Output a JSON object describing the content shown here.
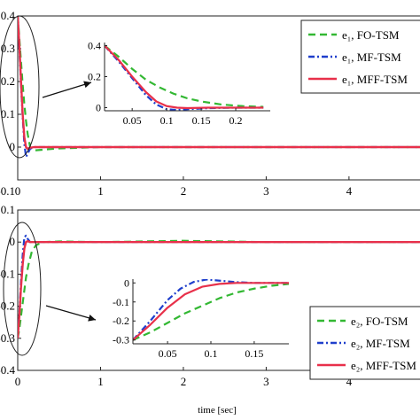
{
  "chart_data": [
    {
      "id": "top",
      "type": "line",
      "xlabel": "",
      "ylabel": "",
      "xlim": [
        0,
        4.9
      ],
      "ylim": [
        -0.1,
        0.4
      ],
      "x_ticks": [
        0,
        1,
        2,
        3,
        4
      ],
      "x_tick_labels": [
        "0",
        "1",
        "2",
        "3",
        "4"
      ],
      "y_ticks": [
        0.4,
        0.3,
        0.2,
        0.1,
        0
      ],
      "y_tick_labels": [
        "0.4",
        "0.3",
        "0.2",
        "0.1",
        "0"
      ],
      "y_tick_labels_bottom": "-0.1",
      "legend_position": "top-right",
      "series": [
        {
          "name": "e₁, FO-TSM",
          "color": "#33b833",
          "dash": "dash",
          "x": [
            0,
            0.02,
            0.04,
            0.06,
            0.08,
            0.1,
            0.12,
            0.15,
            0.2,
            0.3,
            0.5,
            1,
            2,
            3,
            4,
            4.9
          ],
          "y": [
            0.4,
            0.33,
            0.26,
            0.19,
            0.13,
            0.08,
            0.04,
            0.0,
            -0.01,
            -0.008,
            -0.004,
            0.0,
            0.0,
            0.0,
            0.0,
            0.0
          ]
        },
        {
          "name": "e₁, MF-TSM",
          "color": "#1f3fcc",
          "dash": "dashdot",
          "x": [
            0,
            0.02,
            0.04,
            0.06,
            0.08,
            0.1,
            0.12,
            0.15,
            0.2,
            0.3,
            1,
            2,
            3,
            4,
            4.9
          ],
          "y": [
            0.4,
            0.3,
            0.19,
            0.09,
            0.01,
            -0.03,
            -0.02,
            -0.005,
            0.0,
            0.0,
            0.0,
            0.0,
            0.0,
            0.0,
            0.0
          ]
        },
        {
          "name": "e₁, MFF-TSM",
          "color": "#e8304a",
          "dash": "solid",
          "x": [
            0,
            0.02,
            0.04,
            0.06,
            0.08,
            0.1,
            0.12,
            0.15,
            0.2,
            0.3,
            1,
            2,
            3,
            4,
            4.9
          ],
          "y": [
            0.4,
            0.31,
            0.2,
            0.1,
            0.03,
            0.0,
            -0.005,
            -0.002,
            0.0,
            0.0,
            0.0,
            0.0,
            0.0,
            0.0,
            0.0
          ]
        }
      ],
      "inset": {
        "xlim": [
          0.01,
          0.25
        ],
        "ylim": [
          -0.02,
          0.42
        ],
        "x_ticks": [
          0.05,
          0.1,
          0.15,
          0.2
        ],
        "x_tick_labels": [
          "0.05",
          "0.1",
          "0.15",
          "0.2"
        ],
        "y_ticks": [
          0.4,
          0.2,
          0
        ],
        "y_tick_labels": [
          "0.4",
          "0.2",
          "0"
        ],
        "series": [
          {
            "name": "e₁, FO-TSM",
            "x": [
              0.01,
              0.03,
              0.05,
              0.07,
              0.09,
              0.11,
              0.13,
              0.15,
              0.18,
              0.21,
              0.24
            ],
            "y": [
              0.4,
              0.33,
              0.25,
              0.18,
              0.13,
              0.09,
              0.06,
              0.04,
              0.02,
              0.01,
              0.005
            ]
          },
          {
            "name": "e₁, MF-TSM",
            "x": [
              0.01,
              0.03,
              0.05,
              0.07,
              0.085,
              0.1,
              0.115,
              0.13,
              0.16,
              0.2,
              0.24
            ],
            "y": [
              0.4,
              0.3,
              0.19,
              0.08,
              0.02,
              -0.01,
              -0.015,
              -0.01,
              -0.003,
              0.0,
              0.0
            ]
          },
          {
            "name": "e₁, MFF-TSM",
            "x": [
              0.01,
              0.03,
              0.05,
              0.07,
              0.085,
              0.1,
              0.115,
              0.13,
              0.16,
              0.2,
              0.24
            ],
            "y": [
              0.4,
              0.31,
              0.2,
              0.1,
              0.04,
              0.01,
              0.0,
              -0.003,
              0.0,
              0.0,
              0.0
            ]
          }
        ]
      }
    },
    {
      "id": "bottom",
      "type": "line",
      "xlabel": "time [sec]",
      "ylabel": "",
      "xlim": [
        0,
        4.9
      ],
      "ylim": [
        -0.4,
        0.1
      ],
      "x_ticks": [
        0,
        1,
        2,
        3,
        4
      ],
      "x_tick_labels": [
        "0",
        "1",
        "2",
        "3",
        "4"
      ],
      "y_ticks": [
        0.1,
        0,
        -0.1,
        -0.2,
        -0.3,
        -0.4
      ],
      "y_tick_labels": [
        "0.1",
        "0",
        "-0.1",
        "-0.2",
        "-0.3",
        "-0.4"
      ],
      "legend_position": "bottom-right",
      "series": [
        {
          "name": "e₂, FO-TSM",
          "color": "#33b833",
          "dash": "dash",
          "x": [
            0,
            0.02,
            0.04,
            0.06,
            0.08,
            0.1,
            0.13,
            0.17,
            0.22,
            0.3,
            0.5,
            1,
            2,
            3,
            4,
            4.9
          ],
          "y": [
            -0.3,
            -0.27,
            -0.23,
            -0.19,
            -0.15,
            -0.11,
            -0.07,
            -0.03,
            -0.01,
            0.0,
            0.002,
            0.0,
            0.004,
            0.0,
            0.0,
            0.0
          ]
        },
        {
          "name": "e₂, MF-TSM",
          "color": "#1f3fcc",
          "dash": "dashdot",
          "x": [
            0,
            0.02,
            0.04,
            0.06,
            0.08,
            0.1,
            0.12,
            0.15,
            0.2,
            0.3,
            1,
            2,
            3,
            4,
            4.9
          ],
          "y": [
            -0.3,
            -0.22,
            -0.12,
            -0.04,
            0.015,
            0.02,
            0.01,
            0.0,
            0.0,
            0.0,
            0.0,
            0.0,
            0.0,
            0.0,
            0.0
          ]
        },
        {
          "name": "e₂, MFF-TSM",
          "color": "#e8304a",
          "dash": "solid",
          "x": [
            0,
            0.02,
            0.04,
            0.06,
            0.08,
            0.1,
            0.12,
            0.15,
            0.2,
            0.3,
            1,
            2,
            3,
            4,
            4.9
          ],
          "y": [
            -0.3,
            -0.23,
            -0.14,
            -0.07,
            -0.02,
            0.0,
            0.003,
            0.0,
            0.0,
            0.0,
            0.0,
            0.0,
            0.0,
            0.0,
            0.0
          ]
        }
      ],
      "inset": {
        "xlim": [
          0.01,
          0.19
        ],
        "ylim": [
          -0.32,
          0.02
        ],
        "x_ticks": [
          0.05,
          0.1,
          0.15
        ],
        "x_tick_labels": [
          "0.05",
          "0.1",
          "0.15"
        ],
        "y_ticks": [
          0,
          -0.1,
          -0.2,
          -0.3
        ],
        "y_tick_labels": [
          "0",
          "-0.1",
          "-0.2",
          "-0.3"
        ],
        "series": [
          {
            "name": "e₂, FO-TSM",
            "x": [
              0.01,
              0.03,
              0.05,
              0.07,
              0.09,
              0.11,
              0.13,
              0.15,
              0.17,
              0.19
            ],
            "y": [
              -0.3,
              -0.26,
              -0.21,
              -0.16,
              -0.12,
              -0.08,
              -0.05,
              -0.03,
              -0.015,
              -0.005
            ]
          },
          {
            "name": "e₂, MF-TSM",
            "x": [
              0.01,
              0.03,
              0.05,
              0.065,
              0.08,
              0.095,
              0.11,
              0.13,
              0.15,
              0.19
            ],
            "y": [
              -0.3,
              -0.2,
              -0.09,
              -0.03,
              0.005,
              0.018,
              0.012,
              0.004,
              0.0,
              0.0
            ]
          },
          {
            "name": "e₂, MFF-TSM",
            "x": [
              0.01,
              0.03,
              0.05,
              0.07,
              0.09,
              0.11,
              0.13,
              0.15,
              0.19
            ],
            "y": [
              -0.3,
              -0.22,
              -0.13,
              -0.06,
              -0.02,
              -0.005,
              0.0,
              0.0,
              0.0
            ]
          }
        ]
      }
    }
  ]
}
